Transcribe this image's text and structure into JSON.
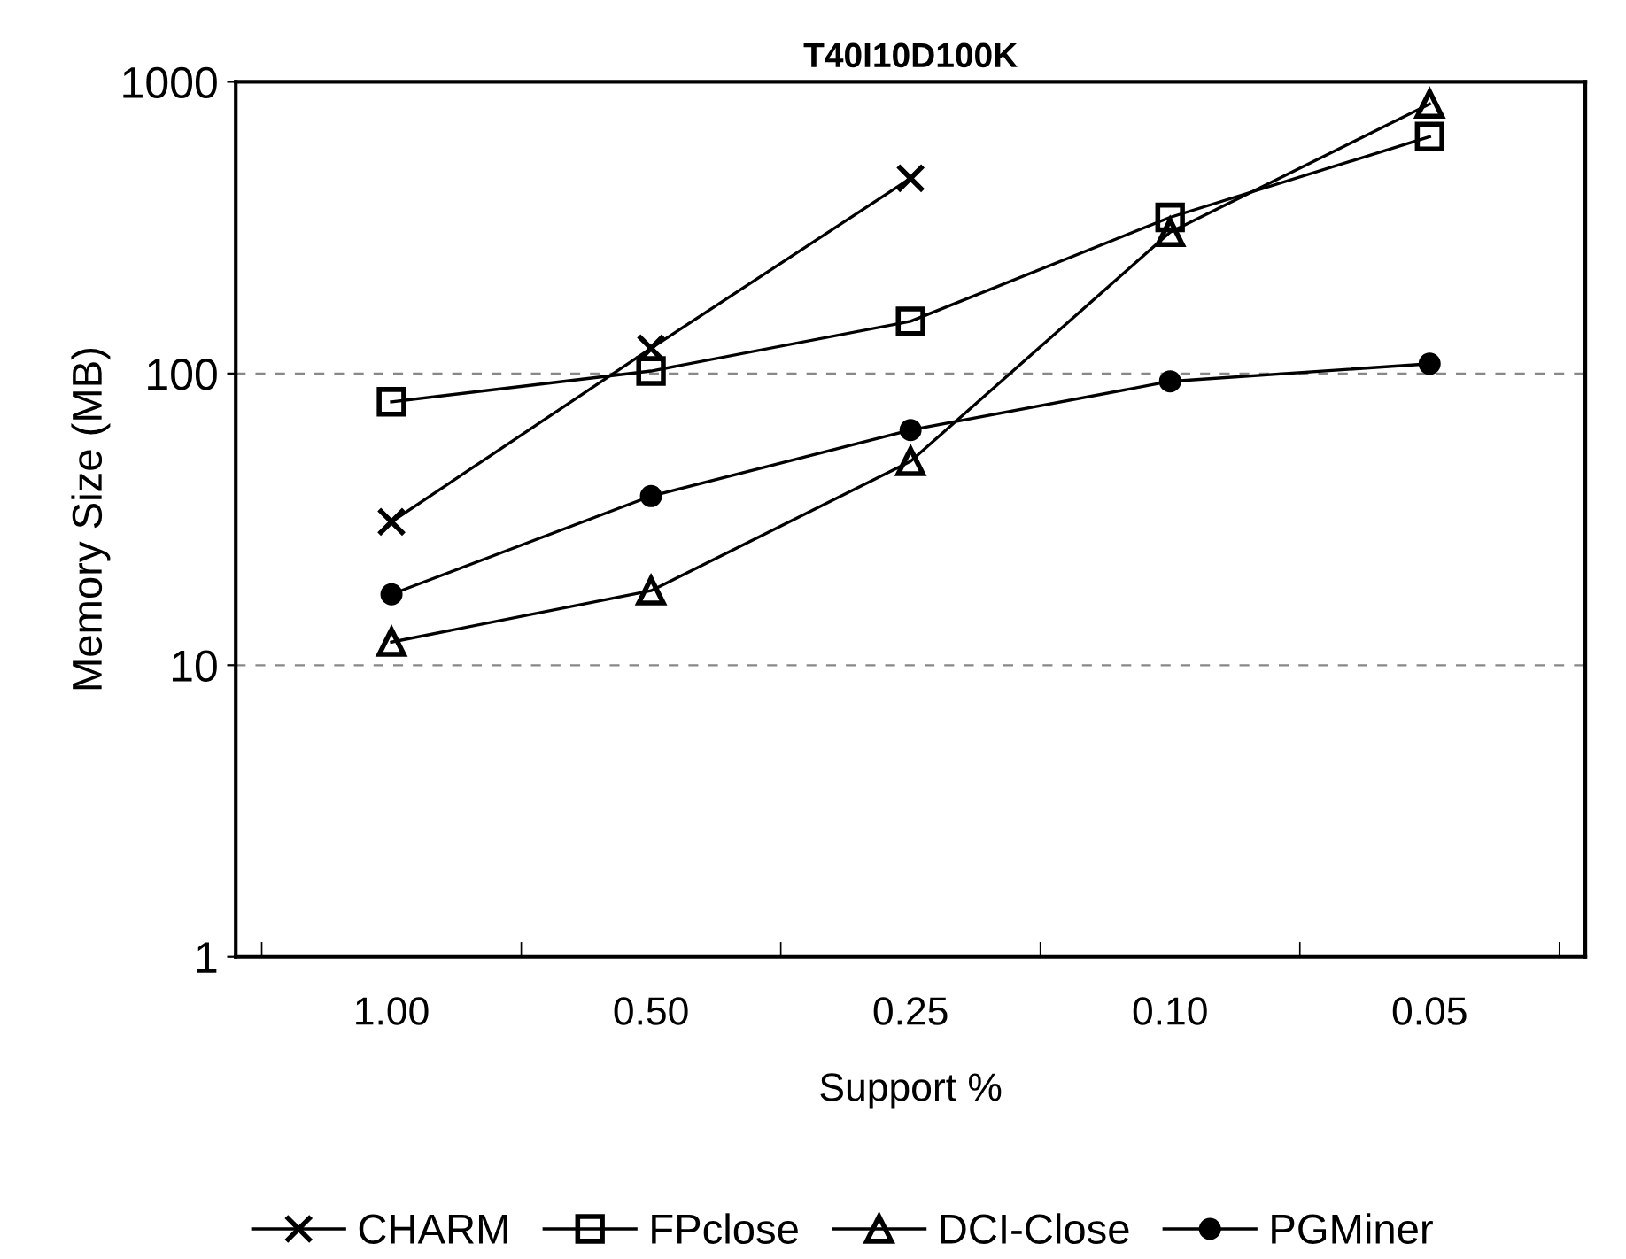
{
  "chart_data": {
    "type": "line",
    "title": "T40I10D100K",
    "xlabel": "Support %",
    "ylabel": "Memory Size (MB)",
    "categories": [
      "1.00",
      "0.50",
      "0.25",
      "0.10",
      "0.05"
    ],
    "series": [
      {
        "name": "CHARM",
        "color": "#000000",
        "marker": "cross",
        "values": [
          31,
          122,
          467,
          null,
          null
        ]
      },
      {
        "name": "FPclose",
        "color": "#000000",
        "marker": "square",
        "values": [
          80,
          102,
          151,
          343,
          649
        ]
      },
      {
        "name": "DCI-Close",
        "color": "#000000",
        "marker": "triangle",
        "values": [
          12,
          18,
          50,
          305,
          840
        ]
      },
      {
        "name": "PGMiner",
        "color": "#000000",
        "marker": "circle",
        "values": [
          17.5,
          38,
          64,
          94,
          108
        ]
      }
    ],
    "log": "y",
    "ylim": [
      1,
      1000
    ],
    "yticks": [
      1,
      10,
      100,
      1000
    ],
    "grid": "y",
    "legend": "bottom",
    "line_style": "solid"
  }
}
